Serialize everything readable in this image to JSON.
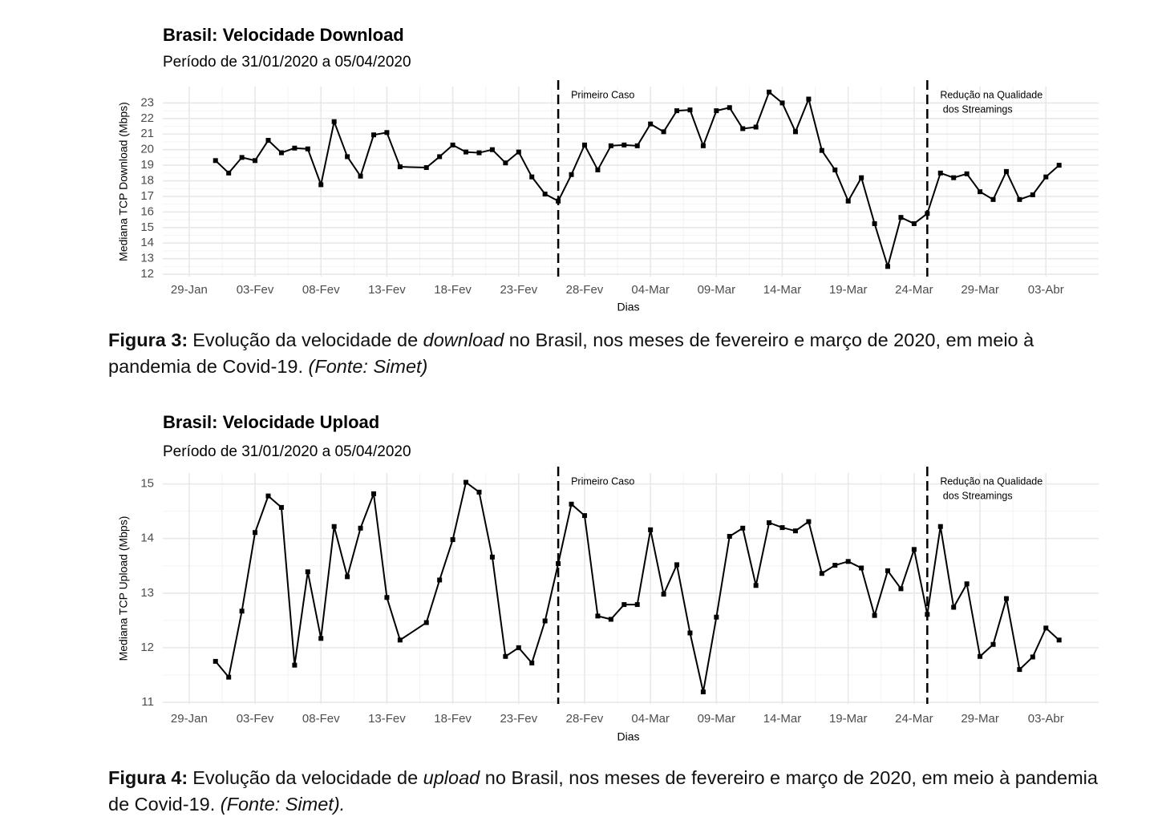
{
  "chart_data": [
    {
      "type": "line",
      "title": "Brasil: Velocidade Download",
      "subtitle": "Período de 31/01/2020 a 05/04/2020",
      "xlabel": "Dias",
      "ylabel": "Mediana TCP Download (Mbps)",
      "color": "#000000",
      "grid": true,
      "x": [
        "2020-01-31",
        "2020-02-01",
        "2020-02-02",
        "2020-02-03",
        "2020-02-04",
        "2020-02-05",
        "2020-02-06",
        "2020-02-07",
        "2020-02-08",
        "2020-02-09",
        "2020-02-10",
        "2020-02-11",
        "2020-02-12",
        "2020-02-13",
        "2020-02-14",
        "2020-02-16",
        "2020-02-17",
        "2020-02-18",
        "2020-02-19",
        "2020-02-20",
        "2020-02-21",
        "2020-02-22",
        "2020-02-23",
        "2020-02-24",
        "2020-02-25",
        "2020-02-26",
        "2020-02-27",
        "2020-02-28",
        "2020-02-29",
        "2020-03-01",
        "2020-03-02",
        "2020-03-03",
        "2020-03-04",
        "2020-03-05",
        "2020-03-06",
        "2020-03-07",
        "2020-03-08",
        "2020-03-09",
        "2020-03-10",
        "2020-03-11",
        "2020-03-12",
        "2020-03-13",
        "2020-03-14",
        "2020-03-15",
        "2020-03-16",
        "2020-03-17",
        "2020-03-18",
        "2020-03-19",
        "2020-03-20",
        "2020-03-21",
        "2020-03-22",
        "2020-03-23",
        "2020-03-24",
        "2020-03-25",
        "2020-03-26",
        "2020-03-27",
        "2020-03-28",
        "2020-03-29",
        "2020-03-30",
        "2020-03-31",
        "2020-04-01",
        "2020-04-02",
        "2020-04-03",
        "2020-04-04"
      ],
      "values": [
        19.3,
        18.5,
        19.5,
        19.3,
        20.6,
        19.8,
        20.1,
        20.05,
        17.75,
        21.8,
        19.55,
        18.3,
        20.95,
        21.1,
        18.9,
        18.85,
        19.55,
        20.3,
        19.85,
        19.8,
        20.0,
        19.15,
        19.85,
        18.25,
        17.15,
        16.7,
        18.4,
        20.3,
        18.7,
        20.25,
        20.3,
        20.25,
        21.65,
        21.15,
        22.5,
        22.55,
        20.25,
        22.5,
        22.7,
        21.35,
        21.45,
        23.7,
        23.0,
        21.15,
        23.25,
        19.95,
        18.7,
        16.7,
        18.2,
        15.25,
        12.5,
        15.65,
        15.25,
        15.9,
        18.5,
        18.2,
        18.45,
        17.3,
        16.8,
        18.6,
        16.8,
        17.1,
        18.25,
        19.0
      ],
      "xlim": [
        "2020-01-27",
        "2020-04-07"
      ],
      "xticks": [
        {
          "value": "2020-01-29",
          "label": "29-Jan"
        },
        {
          "value": "2020-02-03",
          "label": "03-Fev"
        },
        {
          "value": "2020-02-08",
          "label": "08-Fev"
        },
        {
          "value": "2020-02-13",
          "label": "13-Fev"
        },
        {
          "value": "2020-02-18",
          "label": "18-Fev"
        },
        {
          "value": "2020-02-23",
          "label": "23-Fev"
        },
        {
          "value": "2020-02-28",
          "label": "28-Fev"
        },
        {
          "value": "2020-03-04",
          "label": "04-Mar"
        },
        {
          "value": "2020-03-09",
          "label": "09-Mar"
        },
        {
          "value": "2020-03-14",
          "label": "14-Mar"
        },
        {
          "value": "2020-03-19",
          "label": "19-Mar"
        },
        {
          "value": "2020-03-24",
          "label": "24-Mar"
        },
        {
          "value": "2020-03-29",
          "label": "29-Mar"
        },
        {
          "value": "2020-04-03",
          "label": "03-Abr"
        }
      ],
      "ylim": [
        11.85,
        24.05
      ],
      "yticks": [
        12,
        13,
        14,
        15,
        16,
        17,
        18,
        19,
        20,
        21,
        22,
        23
      ],
      "vlines": [
        {
          "x": "2020-02-26",
          "label": [
            "Primeiro Caso"
          ]
        },
        {
          "x": "2020-03-25",
          "label": [
            "Redução na Qualidade",
            " dos Streamings"
          ]
        }
      ]
    },
    {
      "type": "line",
      "title": "Brasil: Velocidade Upload",
      "subtitle": "Período de 31/01/2020 a 05/04/2020",
      "xlabel": "Dias",
      "ylabel": "Mediana TCP Upload (Mbps)",
      "color": "#000000",
      "grid": true,
      "x": [
        "2020-01-31",
        "2020-02-01",
        "2020-02-02",
        "2020-02-03",
        "2020-02-04",
        "2020-02-05",
        "2020-02-06",
        "2020-02-07",
        "2020-02-08",
        "2020-02-09",
        "2020-02-10",
        "2020-02-11",
        "2020-02-12",
        "2020-02-13",
        "2020-02-14",
        "2020-02-16",
        "2020-02-17",
        "2020-02-18",
        "2020-02-19",
        "2020-02-20",
        "2020-02-21",
        "2020-02-22",
        "2020-02-23",
        "2020-02-24",
        "2020-02-25",
        "2020-02-26",
        "2020-02-27",
        "2020-02-28",
        "2020-02-29",
        "2020-03-01",
        "2020-03-02",
        "2020-03-03",
        "2020-03-04",
        "2020-03-05",
        "2020-03-06",
        "2020-03-07",
        "2020-03-08",
        "2020-03-09",
        "2020-03-10",
        "2020-03-11",
        "2020-03-12",
        "2020-03-13",
        "2020-03-14",
        "2020-03-15",
        "2020-03-16",
        "2020-03-17",
        "2020-03-18",
        "2020-03-19",
        "2020-03-20",
        "2020-03-21",
        "2020-03-22",
        "2020-03-23",
        "2020-03-24",
        "2020-03-25",
        "2020-03-26",
        "2020-03-27",
        "2020-03-28",
        "2020-03-29",
        "2020-03-30",
        "2020-03-31",
        "2020-04-01",
        "2020-04-02",
        "2020-04-03",
        "2020-04-04"
      ],
      "values": [
        11.75,
        11.46,
        12.67,
        14.11,
        14.78,
        14.57,
        11.68,
        13.39,
        12.17,
        14.22,
        13.3,
        14.19,
        14.82,
        12.92,
        12.14,
        12.46,
        13.24,
        13.98,
        15.03,
        14.85,
        13.66,
        11.84,
        12.0,
        11.72,
        12.49,
        13.54,
        14.63,
        14.42,
        12.58,
        12.52,
        12.79,
        12.79,
        14.16,
        12.98,
        13.52,
        12.27,
        11.19,
        12.56,
        14.04,
        14.19,
        13.14,
        14.29,
        14.2,
        14.14,
        14.31,
        13.36,
        13.51,
        13.58,
        13.46,
        12.59,
        13.41,
        13.08,
        13.8,
        12.61,
        14.22,
        12.74,
        13.17,
        11.84,
        12.06,
        12.9,
        11.6,
        11.83,
        12.36,
        12.14
      ],
      "xlim": [
        "2020-01-27",
        "2020-04-07"
      ],
      "xticks": [
        {
          "value": "2020-01-29",
          "label": "29-Jan"
        },
        {
          "value": "2020-02-03",
          "label": "03-Fev"
        },
        {
          "value": "2020-02-08",
          "label": "08-Fev"
        },
        {
          "value": "2020-02-13",
          "label": "13-Fev"
        },
        {
          "value": "2020-02-18",
          "label": "18-Fev"
        },
        {
          "value": "2020-02-23",
          "label": "23-Fev"
        },
        {
          "value": "2020-02-28",
          "label": "28-Fev"
        },
        {
          "value": "2020-03-04",
          "label": "04-Mar"
        },
        {
          "value": "2020-03-09",
          "label": "09-Mar"
        },
        {
          "value": "2020-03-14",
          "label": "14-Mar"
        },
        {
          "value": "2020-03-19",
          "label": "19-Mar"
        },
        {
          "value": "2020-03-24",
          "label": "24-Mar"
        },
        {
          "value": "2020-03-29",
          "label": "29-Mar"
        },
        {
          "value": "2020-04-03",
          "label": "03-Abr"
        }
      ],
      "ylim": [
        10.97,
        15.2
      ],
      "yticks": [
        11,
        12,
        13,
        14,
        15
      ],
      "vlines": [
        {
          "x": "2020-02-26",
          "label": [
            "Primeiro Caso"
          ]
        },
        {
          "x": "2020-03-25",
          "label": [
            "Redução na Qualidade",
            " dos Streamings"
          ]
        }
      ]
    }
  ],
  "captions": [
    {
      "label": "Figura 3:",
      "text_1": "Evolução da velocidade de ",
      "emphasis": "download",
      "text_2": " no Brasil, nos meses de fevereiro e março de 2020, em meio à pandemia de Covid-19. ",
      "source": "(Fonte: Simet)"
    },
    {
      "label": "Figura 4:",
      "text_1": "Evolução da velocidade de ",
      "emphasis": "upload",
      "text_2": " no Brasil, nos meses de fevereiro e março de 2020, em meio à pandemia de Covid-19. ",
      "source": "(Fonte: Simet)."
    }
  ]
}
